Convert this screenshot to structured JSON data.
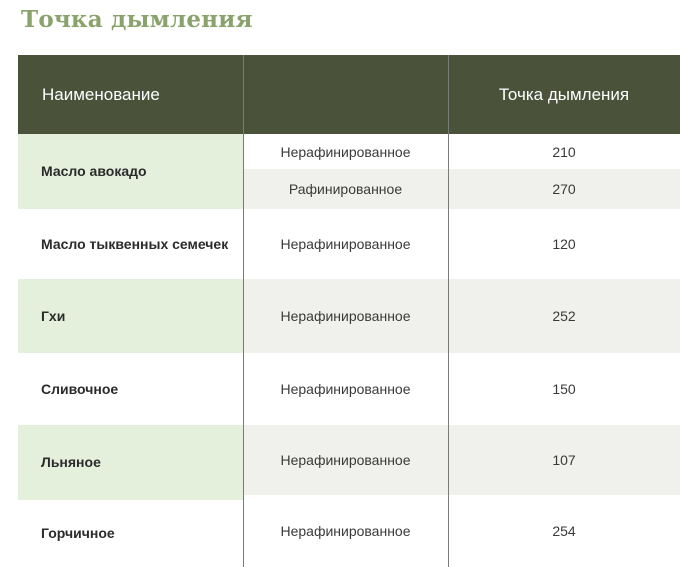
{
  "title": "Точка дымления",
  "header": {
    "name": "Наименование",
    "type": "",
    "smoke_point": "Точка дымления"
  },
  "rows": [
    {
      "name": "Масло авокадо",
      "variants": [
        {
          "type": "Нерафинированное",
          "value": "210"
        },
        {
          "type": "Рафинированное",
          "value": "270"
        }
      ]
    },
    {
      "name": "Масло тыквенных семечек",
      "variants": [
        {
          "type": "Нерафинированное",
          "value": "120"
        }
      ]
    },
    {
      "name": "Гхи",
      "variants": [
        {
          "type": "Нерафинированное",
          "value": "252"
        }
      ]
    },
    {
      "name": "Сливочное",
      "variants": [
        {
          "type": "Нерафинированное",
          "value": "150"
        }
      ]
    },
    {
      "name": "Льняное",
      "variants": [
        {
          "type": "Нерафинированное",
          "value": "107"
        }
      ]
    },
    {
      "name": "Горчичное",
      "variants": [
        {
          "type": "Нерафинированное",
          "value": "254"
        }
      ]
    }
  ]
}
